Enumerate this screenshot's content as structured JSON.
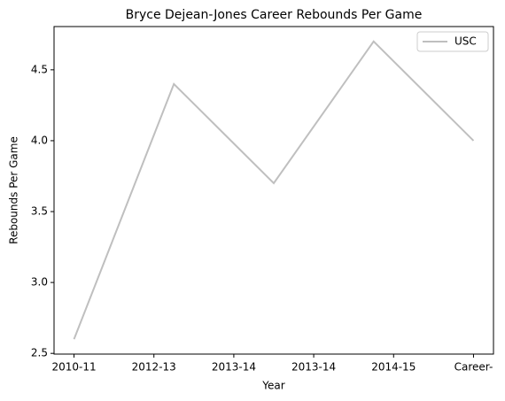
{
  "chart_data": {
    "type": "line",
    "title": "Bryce Dejean-Jones Career Rebounds Per Game",
    "x_label": "Year",
    "y_label": "Rebounds Per Game",
    "x": [
      0,
      1,
      2,
      3,
      4
    ],
    "series": [
      {
        "name": "USC",
        "color": "#bfbfbf",
        "values": [
          2.6,
          4.4,
          3.7,
          4.7,
          4.0
        ]
      }
    ],
    "xlim": [
      -0.2,
      4.2
    ],
    "xticks": [
      {
        "value": 0,
        "label": "2010-11"
      },
      {
        "value": 0.8,
        "label": "2012-13"
      },
      {
        "value": 1.6,
        "label": "2013-14"
      },
      {
        "value": 2.4,
        "label": "2013-14"
      },
      {
        "value": 3.2,
        "label": "2014-15"
      },
      {
        "value": 4,
        "label": "Career-"
      }
    ],
    "ylim": [
      2.495,
      4.805
    ],
    "yticks": [
      2.5,
      {
        "value": 3.0,
        "label": "3.0"
      },
      3.5,
      {
        "value": 4.0,
        "label": "4.0"
      },
      4.5
    ],
    "legend": "upper right",
    "grid": false
  }
}
